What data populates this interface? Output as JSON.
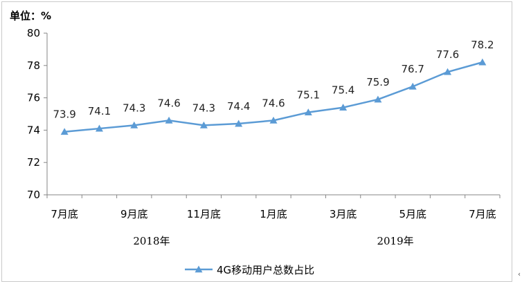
{
  "unit_label": "单位：%",
  "edge_mark": "‹",
  "chart_data": {
    "type": "line",
    "categories": [
      "2018-07",
      "2018-08",
      "2018-09",
      "2018-10",
      "2018-11",
      "2018-12",
      "2019-01",
      "2019-02",
      "2019-03",
      "2019-04",
      "2019-05",
      "2019-06",
      "2019-07"
    ],
    "x_tick_labels": [
      "7月底",
      "9月底",
      "11月底",
      "1月底",
      "3月底",
      "5月底",
      "7月底"
    ],
    "x_tick_index": [
      0,
      2,
      4,
      6,
      8,
      10,
      12
    ],
    "year_labels": [
      {
        "text": "2018年",
        "at_index": 2.5
      },
      {
        "text": "2019年",
        "at_index": 9.5
      }
    ],
    "series": [
      {
        "name": "4G移动用户总数占比",
        "color": "#5b9bd5",
        "values": [
          73.9,
          74.1,
          74.3,
          74.6,
          74.3,
          74.4,
          74.6,
          75.1,
          75.4,
          75.9,
          76.7,
          77.6,
          78.2
        ]
      }
    ],
    "ylim": [
      70,
      80
    ],
    "yticks": [
      70,
      72,
      74,
      76,
      78,
      80
    ],
    "grid": false,
    "legend": "bottom-center",
    "marker": "triangle"
  }
}
